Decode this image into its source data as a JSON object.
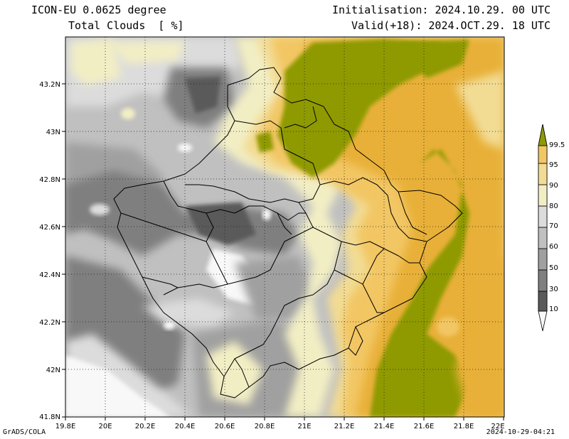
{
  "header": {
    "model": "ICON-EU 0.0625 degree",
    "field": "Total Clouds  [ %]",
    "init": "Initialisation: 2024.10.29. 00 UTC",
    "valid": "Valid(+18): 2024.OCT.29. 18 UTC"
  },
  "axes": {
    "x_ticks": [
      "19.8E",
      "20E",
      "20.2E",
      "20.4E",
      "20.6E",
      "20.8E",
      "21E",
      "21.2E",
      "21.4E",
      "21.6E",
      "21.8E",
      "22E"
    ],
    "y_ticks": [
      "43.2N",
      "43N",
      "42.8N",
      "42.6N",
      "42.4N",
      "42.2N",
      "42N",
      "41.8N"
    ],
    "x_range": [
      19.8,
      22.0
    ],
    "y_range": [
      41.8,
      43.4
    ]
  },
  "colorbar": {
    "levels": [
      "10",
      "30",
      "50",
      "60",
      "70",
      "80",
      "90",
      "95",
      "99.5"
    ],
    "colors": [
      "#f8f8f8",
      "#5a5a5a",
      "#7f7f7f",
      "#a0a0a0",
      "#c0c0c0",
      "#dcdcdc",
      "#f2eec4",
      "#f2dc94",
      "#f2c664",
      "#e8b038",
      "#8e9a04"
    ]
  },
  "footer": {
    "left": "GrADS/COLA",
    "right": "2024-10-29-04:21"
  }
}
